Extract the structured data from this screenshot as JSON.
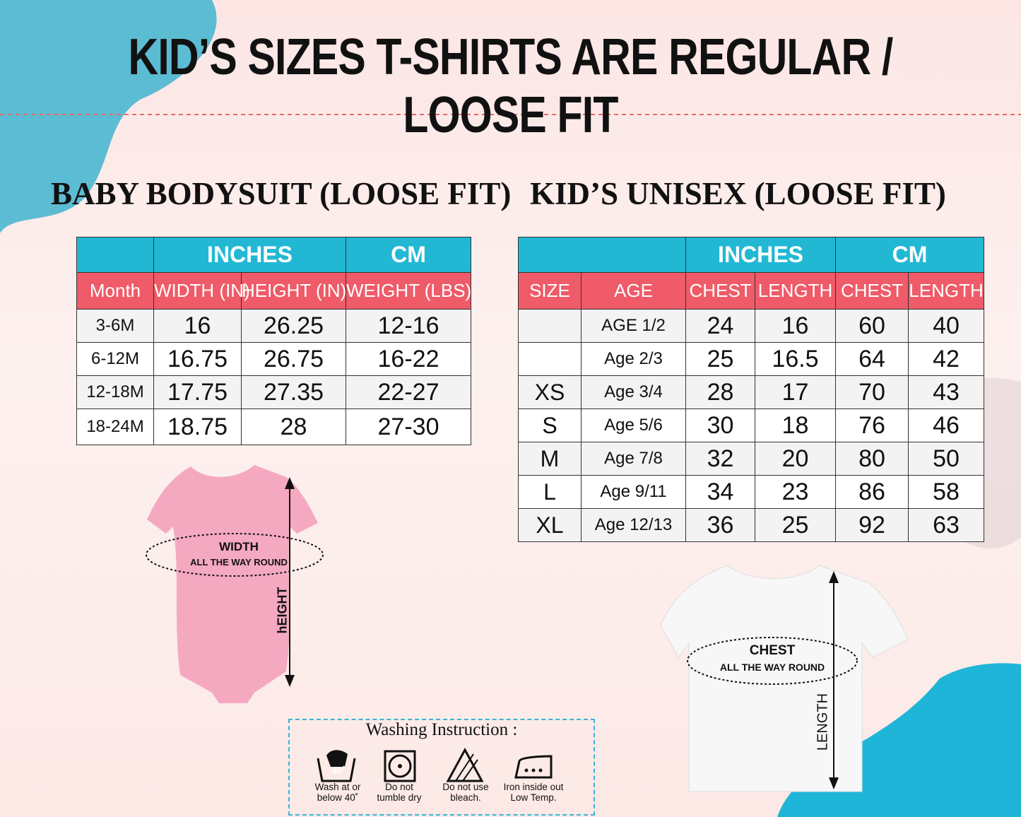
{
  "title": "KID’S SIZES T-SHIRTS ARE REGULAR / LOOSE FIT",
  "baby": {
    "heading": "BABY BODYSUIT (LOOSE FIT)",
    "groups": [
      "INCHES",
      "CM"
    ],
    "columns": [
      "Month",
      "WIDTH (IN)",
      "HEIGHT (IN)",
      "WEIGHT (LBS)"
    ],
    "rows": [
      [
        "3-6M",
        "16",
        "26.25",
        "12-16"
      ],
      [
        "6-12M",
        "16.75",
        "26.75",
        "16-22"
      ],
      [
        "12-18M",
        "17.75",
        "27.35",
        "22-27"
      ],
      [
        "18-24M",
        "18.75",
        "28",
        "27-30"
      ]
    ],
    "diagram": {
      "width": "WIDTH",
      "width_note": "ALL THE WAY ROUND",
      "height": "hEIGHT"
    }
  },
  "kids": {
    "heading": "KID’S UNISEX (LOOSE FIT)",
    "groups": [
      "INCHES",
      "CM"
    ],
    "columns": [
      "SIZE",
      "AGE",
      "CHEST",
      "LENGTH",
      "CHEST",
      "LENGTH"
    ],
    "rows": [
      [
        null,
        "AGE 1/2",
        "24",
        "16",
        "60",
        "40"
      ],
      [
        null,
        "Age 2/3",
        "25",
        "16.5",
        "64",
        "42"
      ],
      [
        "XS",
        "Age 3/4",
        "28",
        "17",
        "70",
        "43"
      ],
      [
        "S",
        "Age 5/6",
        "30",
        "18",
        "76",
        "46"
      ],
      [
        "M",
        "Age 7/8",
        "32",
        "20",
        "80",
        "50"
      ],
      [
        "L",
        "Age 9/11",
        "34",
        "23",
        "86",
        "58"
      ],
      [
        "XL",
        "Age 12/13",
        "36",
        "25",
        "92",
        "63"
      ]
    ],
    "diagram": {
      "chest": "CHEST",
      "chest_note": "ALL THE WAY ROUND",
      "length": "LENGTH"
    }
  },
  "washing": {
    "title": "Washing Instruction :",
    "temperature": "40˚",
    "items": [
      [
        "Wash at or",
        "below 40˚"
      ],
      [
        "Do  not",
        "tumble dry"
      ],
      [
        "Do not use",
        "bleach."
      ],
      [
        "Iron inside out",
        "Low Temp."
      ]
    ]
  }
}
